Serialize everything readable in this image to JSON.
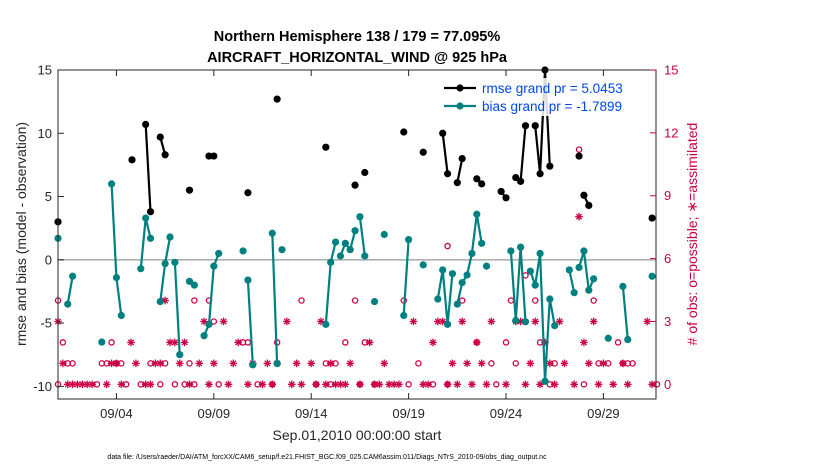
{
  "chart_data": {
    "type": "line",
    "title": "Northern Hemisphere 138 / 179 = 77.095%",
    "subtitle": "AIRCRAFT_HORIZONTAL_WIND @ 925 hPa",
    "xlabel": "Sep.01,2010 00:00:00 start",
    "ylabel": "rmse and bias (model - observation)",
    "ylabel_right": "# of obs: o=possible; ∗=assimilated",
    "footnote": "data file: /Users/raeder/DAI/ATM_forcXX/CAM6_setup/f.e21.FHIST_BGC.f09_025.CAM6assim.011/Diags_NTrS_2010-09/obs_diag_output.nc",
    "xlim": [
      1,
      31.7
    ],
    "ylim": [
      -11,
      15
    ],
    "ylim_right": [
      -0.7,
      15
    ],
    "x_ticks": [
      4,
      9,
      14,
      19,
      24,
      29
    ],
    "x_tick_labels": [
      "09/04",
      "09/09",
      "09/14",
      "09/19",
      "09/24",
      "09/29"
    ],
    "y_ticks": [
      -10,
      -5,
      0,
      5,
      10,
      15
    ],
    "y_tick_labels": [
      "-10",
      "-5",
      "0",
      "5",
      "10",
      "15"
    ],
    "y_right_ticks": [
      0,
      3,
      6,
      9,
      12,
      15
    ],
    "y_right_tick_labels": [
      "0",
      "3",
      "6",
      "9",
      "12",
      "15"
    ],
    "zero_line": 0,
    "colors": {
      "rmse": "#000000",
      "bias": "#008080",
      "obs": "#cc0044",
      "zero": "#b0b0b0",
      "legend_text": "#0047e6"
    },
    "series": [
      {
        "name": "rmse grand pr = 5.0453",
        "segments": [
          [
            [
              1.0,
              3.0
            ]
          ],
          [
            [
              4.8,
              7.9
            ]
          ],
          [
            [
              5.5,
              10.7
            ],
            [
              5.75,
              3.8
            ]
          ],
          [
            [
              6.25,
              9.7
            ],
            [
              6.5,
              8.3
            ]
          ],
          [
            [
              7.75,
              5.5
            ]
          ],
          [
            [
              8.75,
              8.2
            ],
            [
              9.0,
              8.2
            ]
          ],
          [
            [
              10.75,
              5.3
            ]
          ],
          [
            [
              12.25,
              12.7
            ]
          ],
          [
            [
              14.75,
              8.9
            ]
          ],
          [
            [
              16.25,
              5.9
            ]
          ],
          [
            [
              16.75,
              6.9
            ]
          ],
          [
            [
              18.75,
              10.1
            ]
          ],
          [
            [
              19.75,
              8.5
            ]
          ],
          [
            [
              20.75,
              10.0
            ],
            [
              21.0,
              6.8
            ]
          ],
          [
            [
              21.5,
              6.1
            ],
            [
              21.75,
              8.0
            ]
          ],
          [
            [
              22.5,
              6.4
            ],
            [
              22.75,
              6.0
            ]
          ],
          [
            [
              23.75,
              5.4
            ],
            [
              24.0,
              4.9
            ]
          ],
          [
            [
              24.5,
              6.5
            ],
            [
              24.75,
              6.2
            ],
            [
              25.0,
              10.6
            ]
          ],
          [
            [
              25.5,
              10.6
            ],
            [
              25.75,
              6.8
            ],
            [
              26.0,
              15.0
            ],
            [
              26.25,
              7.4
            ]
          ],
          [
            [
              27.75,
              8.2
            ]
          ],
          [
            [
              28.0,
              5.1
            ],
            [
              28.25,
              4.3
            ]
          ],
          [
            [
              31.5,
              3.3
            ]
          ]
        ]
      },
      {
        "name": "bias grand pr = -1.7899",
        "segments": [
          [
            [
              1.0,
              1.7
            ]
          ],
          [
            [
              1.5,
              -3.5
            ],
            [
              1.75,
              -1.3
            ]
          ],
          [
            [
              3.25,
              -6.5
            ]
          ],
          [
            [
              3.75,
              6.0
            ],
            [
              4.0,
              -1.4
            ],
            [
              4.25,
              -4.4
            ]
          ],
          [
            [
              5.25,
              -0.7
            ],
            [
              5.5,
              3.3
            ],
            [
              5.75,
              1.7
            ]
          ],
          [
            [
              6.25,
              -3.3
            ],
            [
              6.5,
              -0.3
            ],
            [
              6.75,
              1.8
            ]
          ],
          [
            [
              7.0,
              -0.2
            ],
            [
              7.25,
              -7.5
            ]
          ],
          [
            [
              7.75,
              -1.7
            ],
            [
              8.0,
              -2.0
            ]
          ],
          [
            [
              8.5,
              -6.0
            ],
            [
              8.75,
              -5.1
            ],
            [
              9.0,
              -0.5
            ],
            [
              9.25,
              0.5
            ]
          ],
          [
            [
              10.5,
              0.7
            ]
          ],
          [
            [
              10.75,
              -1.6
            ],
            [
              11.0,
              -8.3
            ]
          ],
          [
            [
              12.0,
              2.1
            ],
            [
              12.25,
              -8.2
            ]
          ],
          [
            [
              12.5,
              0.8
            ]
          ],
          [
            [
              14.75,
              -5.1
            ],
            [
              15.0,
              -0.2
            ],
            [
              15.25,
              1.4
            ]
          ],
          [
            [
              15.5,
              0.3
            ],
            [
              15.75,
              1.3
            ],
            [
              16.0,
              0.8
            ],
            [
              16.25,
              2.3
            ]
          ],
          [
            [
              16.5,
              3.4
            ],
            [
              16.75,
              0.3
            ]
          ],
          [
            [
              17.25,
              -3.3
            ]
          ],
          [
            [
              17.75,
              2.0
            ]
          ],
          [
            [
              18.75,
              -4.4
            ],
            [
              19.0,
              1.6
            ]
          ],
          [
            [
              19.75,
              -0.4
            ]
          ],
          [
            [
              20.5,
              -3.1
            ],
            [
              20.75,
              -0.8
            ],
            [
              21.0,
              -5.1
            ],
            [
              21.25,
              -1.1
            ]
          ],
          [
            [
              21.5,
              -3.5
            ],
            [
              21.75,
              -1.8
            ],
            [
              22.0,
              -1.2
            ],
            [
              22.25,
              0.5
            ],
            [
              22.5,
              3.6
            ],
            [
              22.75,
              1.3
            ]
          ],
          [
            [
              23.0,
              -0.5
            ]
          ],
          [
            [
              24.25,
              0.7
            ],
            [
              24.5,
              -4.8
            ],
            [
              24.75,
              1.0
            ],
            [
              25.0,
              -4.9
            ]
          ],
          [
            [
              25.25,
              -0.9
            ],
            [
              25.5,
              -2.0
            ],
            [
              25.75,
              0.5
            ],
            [
              26.0,
              -9.6
            ],
            [
              26.25,
              -3.1
            ],
            [
              26.5,
              -5.2
            ]
          ],
          [
            [
              27.25,
              -0.8
            ],
            [
              27.5,
              -2.6
            ]
          ],
          [
            [
              27.75,
              -0.6
            ],
            [
              28.0,
              0.7
            ],
            [
              28.25,
              -2.4
            ],
            [
              28.5,
              -1.5
            ]
          ],
          [
            [
              29.25,
              -6.2
            ]
          ],
          [
            [
              30.0,
              -2.1
            ],
            [
              30.25,
              -6.3
            ]
          ],
          [
            [
              31.5,
              -1.3
            ]
          ]
        ]
      }
    ],
    "obs_possible": [
      [
        1,
        0
      ],
      [
        1,
        4
      ],
      [
        1.25,
        2
      ],
      [
        1.5,
        1
      ],
      [
        1.75,
        1
      ],
      [
        3,
        0
      ],
      [
        3.25,
        1
      ],
      [
        3.5,
        1
      ],
      [
        3.75,
        2
      ],
      [
        4,
        1
      ],
      [
        4.25,
        1
      ],
      [
        4.5,
        0
      ],
      [
        5.25,
        0
      ],
      [
        5.75,
        1
      ],
      [
        6.25,
        0
      ],
      [
        6.5,
        1
      ],
      [
        7,
        0
      ],
      [
        7.5,
        0
      ],
      [
        7.75,
        1
      ],
      [
        8,
        4
      ],
      [
        8,
        0
      ],
      [
        8.75,
        4
      ],
      [
        9,
        3
      ],
      [
        9.25,
        0
      ],
      [
        10.5,
        2
      ],
      [
        10.75,
        2
      ],
      [
        11.25,
        0
      ],
      [
        12,
        0
      ],
      [
        12.25,
        2
      ],
      [
        13.5,
        4
      ],
      [
        14.25,
        0
      ],
      [
        14.75,
        1
      ],
      [
        15,
        0
      ],
      [
        15.25,
        1
      ],
      [
        15.75,
        2
      ],
      [
        16.25,
        4
      ],
      [
        16.5,
        0
      ],
      [
        16.75,
        2
      ],
      [
        17.25,
        0
      ],
      [
        18.75,
        4
      ],
      [
        19,
        0
      ],
      [
        19.5,
        1
      ],
      [
        20.25,
        0
      ],
      [
        21,
        6.6
      ],
      [
        21,
        0
      ],
      [
        21.75,
        4
      ],
      [
        22.5,
        2
      ],
      [
        23.25,
        1
      ],
      [
        23.5,
        0
      ],
      [
        24,
        2
      ],
      [
        24.25,
        4
      ],
      [
        24.5,
        1
      ],
      [
        25,
        5.2
      ],
      [
        25.5,
        4
      ],
      [
        25.75,
        2
      ],
      [
        26.25,
        0
      ],
      [
        26.5,
        1
      ],
      [
        27.75,
        11.2
      ],
      [
        28,
        0
      ],
      [
        28.5,
        4
      ],
      [
        28.75,
        1
      ],
      [
        29.75,
        2
      ],
      [
        29.25,
        1
      ],
      [
        30,
        1
      ],
      [
        30.25,
        1
      ],
      [
        30.5,
        1
      ],
      [
        31.75,
        0
      ]
    ],
    "obs_assimilated": [
      [
        1,
        3
      ],
      [
        1.25,
        1
      ],
      [
        1.5,
        0
      ],
      [
        1.75,
        0
      ],
      [
        2,
        0
      ],
      [
        2.25,
        0
      ],
      [
        2.5,
        0
      ],
      [
        2.75,
        0
      ],
      [
        3.5,
        0
      ],
      [
        3.75,
        1
      ],
      [
        4,
        1
      ],
      [
        4.25,
        0
      ],
      [
        4.75,
        2
      ],
      [
        5,
        1
      ],
      [
        5.5,
        0
      ],
      [
        5.75,
        0
      ],
      [
        6,
        1
      ],
      [
        6.25,
        1
      ],
      [
        6.5,
        4
      ],
      [
        6.75,
        2
      ],
      [
        7,
        2
      ],
      [
        7.25,
        1
      ],
      [
        7.5,
        2
      ],
      [
        7.75,
        0
      ],
      [
        8.25,
        1
      ],
      [
        8.5,
        3
      ],
      [
        8.75,
        0
      ],
      [
        9,
        1
      ],
      [
        9.5,
        3
      ],
      [
        9.75,
        0
      ],
      [
        10,
        1
      ],
      [
        10.25,
        2
      ],
      [
        10.75,
        0
      ],
      [
        11,
        1
      ],
      [
        11.5,
        0
      ],
      [
        11.75,
        1
      ],
      [
        12,
        0
      ],
      [
        12.25,
        1
      ],
      [
        12.75,
        3
      ],
      [
        13,
        0
      ],
      [
        13.25,
        1
      ],
      [
        13.5,
        0
      ],
      [
        14,
        1
      ],
      [
        14.25,
        0
      ],
      [
        14.5,
        3
      ],
      [
        14.75,
        0
      ],
      [
        15,
        1
      ],
      [
        15.25,
        0
      ],
      [
        15.5,
        0
      ],
      [
        15.75,
        0
      ],
      [
        16,
        1
      ],
      [
        16.5,
        0
      ],
      [
        17,
        2
      ],
      [
        17.25,
        0
      ],
      [
        17.5,
        0
      ],
      [
        17.75,
        1
      ],
      [
        18,
        0
      ],
      [
        18.25,
        0
      ],
      [
        18.5,
        0
      ],
      [
        19.25,
        3
      ],
      [
        19.75,
        0
      ],
      [
        20,
        0
      ],
      [
        20.25,
        2
      ],
      [
        20.5,
        3
      ],
      [
        20.75,
        3
      ],
      [
        21,
        0
      ],
      [
        21.25,
        1
      ],
      [
        21.5,
        0
      ],
      [
        21.75,
        3
      ],
      [
        22,
        1
      ],
      [
        22.25,
        0
      ],
      [
        22.5,
        2
      ],
      [
        22.75,
        1
      ],
      [
        23,
        0
      ],
      [
        23.25,
        3
      ],
      [
        24,
        0
      ],
      [
        24.5,
        3
      ],
      [
        24.75,
        3
      ],
      [
        25,
        0
      ],
      [
        25.25,
        1
      ],
      [
        25.5,
        3
      ],
      [
        25.75,
        0
      ],
      [
        26,
        2
      ],
      [
        26.25,
        1
      ],
      [
        26.5,
        0
      ],
      [
        26.75,
        3
      ],
      [
        27,
        1
      ],
      [
        27.5,
        0
      ],
      [
        27.75,
        8
      ],
      [
        28,
        2
      ],
      [
        28.25,
        1
      ],
      [
        28.5,
        3
      ],
      [
        28.75,
        0
      ],
      [
        29,
        1
      ],
      [
        29.5,
        0
      ],
      [
        30,
        1
      ],
      [
        30.25,
        0
      ],
      [
        31.25,
        3
      ],
      [
        31.5,
        0
      ]
    ]
  }
}
